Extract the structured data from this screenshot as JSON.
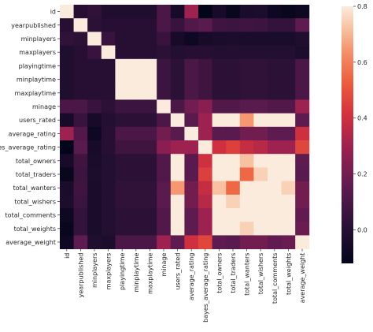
{
  "chart_data": {
    "type": "heatmap",
    "labels": [
      "id",
      "yearpublished",
      "minplayers",
      "maxplayers",
      "playingtime",
      "minplaytime",
      "maxplaytime",
      "minage",
      "users_rated",
      "average_rating",
      "bayes_average_rating",
      "total_owners",
      "total_traders",
      "total_wanters",
      "total_wishers",
      "total_comments",
      "total_weights",
      "average_weight"
    ],
    "matrix": [
      [
        1.0,
        0.0,
        0.03,
        -0.02,
        -0.02,
        -0.02,
        -0.02,
        0.1,
        -0.05,
        0.3,
        -0.12,
        -0.05,
        -0.1,
        -0.04,
        -0.03,
        -0.08,
        -0.1,
        -0.08
      ],
      [
        0.0,
        1.0,
        0.02,
        0.0,
        0.0,
        0.0,
        0.0,
        0.1,
        0.05,
        0.12,
        0.14,
        0.07,
        0.06,
        0.07,
        0.06,
        0.04,
        0.04,
        0.15
      ],
      [
        0.03,
        0.02,
        1.0,
        0.05,
        0.0,
        0.0,
        0.0,
        0.05,
        -0.05,
        -0.08,
        -0.05,
        -0.04,
        -0.03,
        -0.04,
        -0.04,
        -0.04,
        -0.04,
        -0.02
      ],
      [
        -0.02,
        0.0,
        0.05,
        1.0,
        0.0,
        0.0,
        0.0,
        0.02,
        -0.01,
        0.0,
        0.0,
        -0.01,
        -0.01,
        -0.01,
        -0.01,
        -0.01,
        -0.01,
        -0.03
      ],
      [
        -0.02,
        0.0,
        0.0,
        0.0,
        1.0,
        1.0,
        1.0,
        0.06,
        0.02,
        0.1,
        0.07,
        0.02,
        0.02,
        0.03,
        0.03,
        0.02,
        0.02,
        0.1
      ],
      [
        -0.02,
        0.0,
        0.0,
        0.0,
        1.0,
        1.0,
        1.0,
        0.06,
        0.02,
        0.1,
        0.07,
        0.02,
        0.02,
        0.03,
        0.03,
        0.02,
        0.02,
        0.1
      ],
      [
        -0.02,
        0.0,
        0.0,
        0.0,
        1.0,
        1.0,
        1.0,
        0.06,
        0.02,
        0.1,
        0.07,
        0.02,
        0.02,
        0.03,
        0.03,
        0.02,
        0.02,
        0.1
      ],
      [
        0.1,
        0.1,
        0.05,
        0.02,
        0.06,
        0.06,
        0.06,
        1.0,
        0.1,
        0.2,
        0.25,
        0.12,
        0.12,
        0.14,
        0.14,
        0.12,
        0.12,
        0.3
      ],
      [
        -0.05,
        0.05,
        -0.05,
        -0.01,
        0.02,
        0.02,
        0.02,
        0.1,
        1.0,
        0.14,
        0.3,
        0.95,
        0.9,
        0.65,
        0.9,
        0.95,
        0.9,
        0.15
      ],
      [
        0.3,
        0.12,
        -0.08,
        0.0,
        0.1,
        0.1,
        0.1,
        0.2,
        0.14,
        1.0,
        0.3,
        0.14,
        0.14,
        0.2,
        0.2,
        0.15,
        0.15,
        0.4
      ],
      [
        -0.12,
        0.14,
        -0.05,
        0.0,
        0.07,
        0.07,
        0.07,
        0.25,
        0.3,
        0.3,
        1.0,
        0.4,
        0.45,
        0.38,
        0.35,
        0.3,
        0.3,
        0.47
      ],
      [
        -0.05,
        0.07,
        -0.04,
        -0.01,
        0.02,
        0.02,
        0.02,
        0.12,
        0.95,
        0.14,
        0.4,
        1.0,
        0.9,
        0.72,
        0.9,
        0.95,
        0.95,
        0.15
      ],
      [
        -0.1,
        0.06,
        -0.03,
        -0.01,
        0.02,
        0.02,
        0.02,
        0.12,
        0.9,
        0.14,
        0.45,
        0.9,
        1.0,
        0.55,
        0.75,
        0.9,
        0.9,
        0.14
      ],
      [
        -0.04,
        0.07,
        -0.04,
        -0.01,
        0.03,
        0.03,
        0.03,
        0.14,
        0.65,
        0.2,
        0.38,
        0.72,
        0.55,
        1.0,
        0.95,
        0.8,
        0.75,
        0.2
      ],
      [
        -0.03,
        0.06,
        -0.04,
        -0.01,
        0.03,
        0.03,
        0.03,
        0.14,
        0.9,
        0.2,
        0.35,
        0.9,
        0.75,
        0.95,
        1.0,
        0.85,
        0.85,
        0.2
      ],
      [
        -0.08,
        0.04,
        -0.04,
        -0.01,
        0.02,
        0.02,
        0.02,
        0.12,
        0.95,
        0.15,
        0.3,
        0.95,
        0.9,
        0.8,
        0.85,
        1.0,
        0.95,
        0.16
      ],
      [
        -0.1,
        0.04,
        -0.04,
        -0.01,
        0.02,
        0.02,
        0.02,
        0.12,
        0.9,
        0.15,
        0.3,
        0.95,
        0.9,
        0.75,
        0.85,
        0.95,
        1.0,
        0.18
      ],
      [
        -0.08,
        0.15,
        -0.02,
        -0.03,
        0.1,
        0.1,
        0.1,
        0.3,
        0.15,
        0.4,
        0.47,
        0.15,
        0.14,
        0.2,
        0.2,
        0.16,
        0.18,
        1.0
      ]
    ],
    "vmin": -0.12,
    "vmax": 0.8,
    "colorbar_ticks": [
      0.0,
      0.2,
      0.4,
      0.6,
      0.8
    ],
    "colorbar_tick_labels": [
      "0.0",
      "0.2",
      "0.4",
      "0.6",
      "0.8"
    ],
    "title": "",
    "xlabel": "",
    "ylabel": "",
    "colormap": "rocket"
  }
}
